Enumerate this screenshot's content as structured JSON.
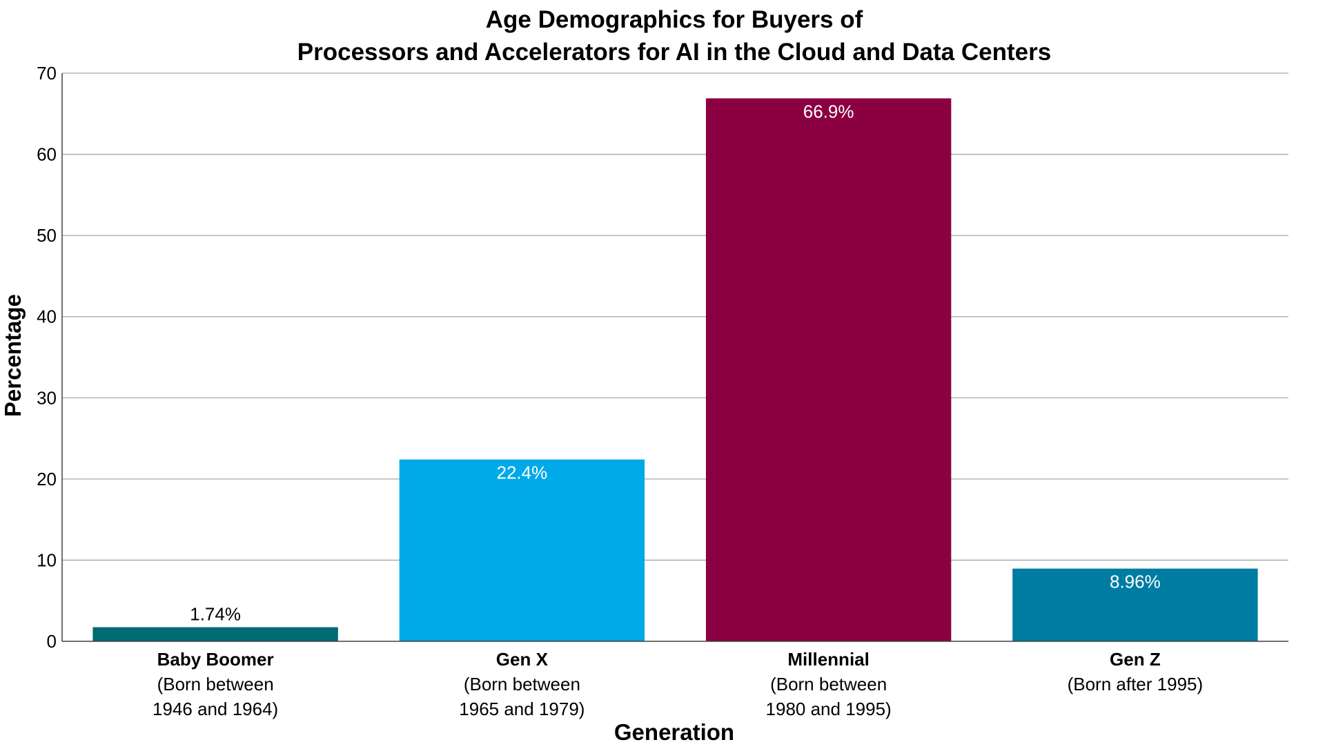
{
  "chart_data": {
    "type": "bar",
    "title": [
      "Age Demographics for Buyers of",
      "Processors and Accelerators for AI in the Cloud and Data Centers"
    ],
    "xlabel": "Generation",
    "ylabel": "Percentage",
    "ylim": [
      0,
      70
    ],
    "yticks": [
      0,
      10,
      20,
      30,
      40,
      50,
      60,
      70
    ],
    "grid": true,
    "categories": [
      {
        "name": "Baby Boomer",
        "sub": [
          "(Born between",
          "1946 and 1964)"
        ]
      },
      {
        "name": "Gen X",
        "sub": [
          "(Born between",
          "1965 and 1979)"
        ]
      },
      {
        "name": "Millennial",
        "sub": [
          "(Born between",
          "1980 and 1995)"
        ]
      },
      {
        "name": "Gen Z",
        "sub": [
          "(Born after 1995)"
        ]
      }
    ],
    "values": [
      1.74,
      22.4,
      66.9,
      8.96
    ],
    "data_labels": [
      "1.74%",
      "22.4%",
      "66.9%",
      "8.96%"
    ],
    "colors": [
      "#006b73",
      "#00a9e8",
      "#8b0041",
      "#007ca3"
    ],
    "label_colors": [
      "#000000",
      "#ffffff",
      "#ffffff",
      "#ffffff"
    ]
  }
}
